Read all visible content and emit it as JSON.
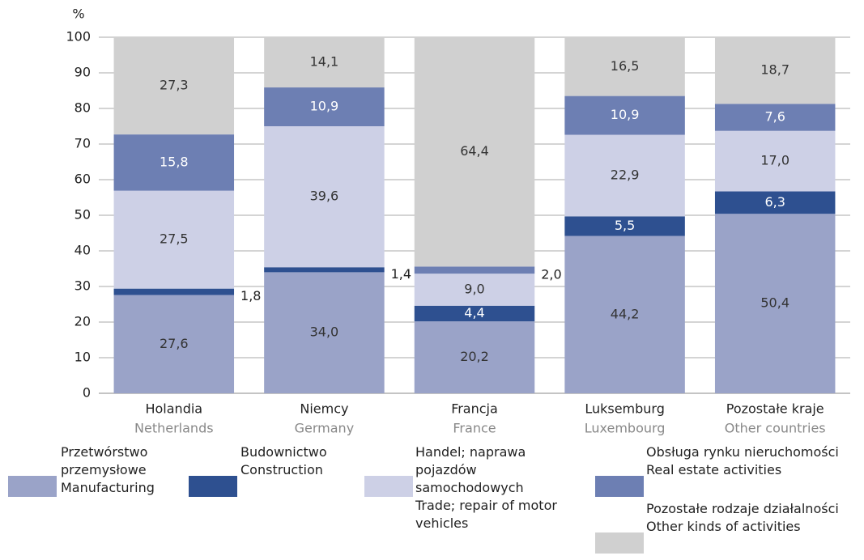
{
  "chart_data": {
    "type": "stacked_bar",
    "ylabel": "%",
    "categories": [
      "Holandia",
      "Niemcy",
      "Francja",
      "Luksemburg",
      "Pozostałe kraje"
    ],
    "categories_en": [
      "Netherlands",
      "Germany",
      "France",
      "Luxembourg",
      "Other countries"
    ],
    "ylim": [
      0,
      100
    ],
    "yticks": [
      0,
      10,
      20,
      30,
      40,
      50,
      60,
      70,
      80,
      90,
      100
    ],
    "grid": true,
    "series": [
      {
        "name": "Przetwórstwo przemysłowe",
        "name_en": "Manufacturing",
        "color": "#9aa3c8",
        "label_color": "#333333",
        "values": [
          27.6,
          34,
          20.2,
          44.2,
          50.4
        ],
        "value_labels": [
          "27,6",
          "34,0",
          "20,2",
          "44,2",
          "50,4"
        ]
      },
      {
        "name": "Budownictwo",
        "name_en": "Construction",
        "color": "#2e5090",
        "label_color": "#ffffff",
        "values": [
          1.8,
          1.4,
          4.4,
          5.5,
          6.3
        ],
        "value_labels": [
          "1,8",
          "1,4",
          "4,4",
          "5,5",
          "6,3"
        ]
      },
      {
        "name": "Handel; naprawa pojazdów samochodowych",
        "name_en": "Trade; repair of motor vehicles",
        "color": "#cdd0e6",
        "label_color": "#333333",
        "values": [
          27.5,
          39.6,
          9,
          22.9,
          17
        ],
        "value_labels": [
          "27,5",
          "39,6",
          "9,0",
          "22,9",
          "17,0"
        ]
      },
      {
        "name": "Obsługa rynku nieruchomości",
        "name_en": "Real estate activities",
        "color": "#6d7fb3",
        "label_color": "#ffffff",
        "values": [
          15.8,
          10.9,
          2,
          10.9,
          7.6
        ],
        "value_labels": [
          "15,8",
          "10,9",
          "2,0",
          "10,9",
          "7,6"
        ]
      },
      {
        "name": "Pozostałe rodzaje działalności",
        "name_en": "Other kinds of activities",
        "color": "#d0d0d0",
        "label_color": "#333333",
        "values": [
          27.3,
          14.1,
          64.4,
          16.5,
          18.7
        ],
        "value_labels": [
          "27,3",
          "14,1",
          "64,4",
          "16,5",
          "18,7"
        ]
      }
    ]
  }
}
